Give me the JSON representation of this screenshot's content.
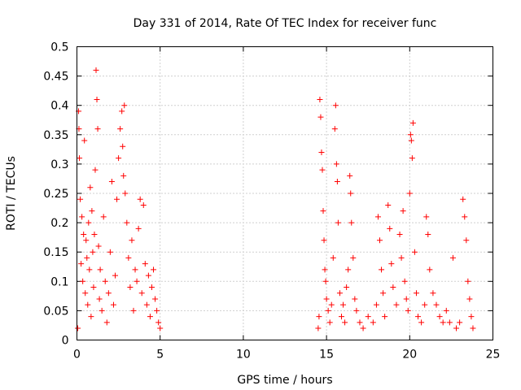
{
  "chart_data": {
    "type": "scatter",
    "title": "Day 331 of 2014, Rate Of TEC Index for receiver func",
    "xlabel": "GPS time / hours",
    "ylabel": "ROTI / TECUs",
    "xlim": [
      0,
      25
    ],
    "ylim": [
      0,
      0.5
    ],
    "x_ticks": [
      "0",
      "5",
      "10",
      "15",
      "20",
      "25"
    ],
    "y_ticks": [
      "0",
      "0.05",
      "0.1",
      "0.15",
      "0.2",
      "0.25",
      "0.3",
      "0.35",
      "0.4",
      "0.45",
      "0.5"
    ],
    "grid": true,
    "marker": "+",
    "marker_color": "#ff0000",
    "series": [
      {
        "values": [
          [
            0.05,
            0.02
          ],
          [
            0.1,
            0.39
          ],
          [
            0.12,
            0.36
          ],
          [
            0.15,
            0.31
          ],
          [
            0.2,
            0.24
          ],
          [
            0.25,
            0.13
          ],
          [
            0.3,
            0.21
          ],
          [
            0.35,
            0.1
          ],
          [
            0.4,
            0.18
          ],
          [
            0.45,
            0.34
          ],
          [
            0.5,
            0.08
          ],
          [
            0.55,
            0.17
          ],
          [
            0.6,
            0.14
          ],
          [
            0.65,
            0.06
          ],
          [
            0.7,
            0.2
          ],
          [
            0.75,
            0.12
          ],
          [
            0.8,
            0.26
          ],
          [
            0.85,
            0.04
          ],
          [
            0.9,
            0.22
          ],
          [
            0.95,
            0.15
          ],
          [
            1.0,
            0.09
          ],
          [
            1.05,
            0.18
          ],
          [
            1.1,
            0.29
          ],
          [
            1.15,
            0.46
          ],
          [
            1.2,
            0.41
          ],
          [
            1.25,
            0.36
          ],
          [
            1.3,
            0.16
          ],
          [
            1.35,
            0.07
          ],
          [
            1.4,
            0.12
          ],
          [
            1.5,
            0.05
          ],
          [
            1.6,
            0.21
          ],
          [
            1.7,
            0.1
          ],
          [
            1.8,
            0.03
          ],
          [
            1.9,
            0.08
          ],
          [
            2.0,
            0.15
          ],
          [
            2.1,
            0.27
          ],
          [
            2.2,
            0.06
          ],
          [
            2.3,
            0.11
          ],
          [
            2.4,
            0.24
          ],
          [
            2.5,
            0.31
          ],
          [
            2.6,
            0.36
          ],
          [
            2.7,
            0.39
          ],
          [
            2.75,
            0.33
          ],
          [
            2.8,
            0.28
          ],
          [
            2.85,
            0.4
          ],
          [
            2.9,
            0.25
          ],
          [
            3.0,
            0.2
          ],
          [
            3.1,
            0.14
          ],
          [
            3.2,
            0.09
          ],
          [
            3.3,
            0.17
          ],
          [
            3.4,
            0.05
          ],
          [
            3.5,
            0.12
          ],
          [
            3.6,
            0.1
          ],
          [
            3.7,
            0.19
          ],
          [
            3.8,
            0.24
          ],
          [
            3.9,
            0.08
          ],
          [
            4.0,
            0.23
          ],
          [
            4.1,
            0.13
          ],
          [
            4.2,
            0.06
          ],
          [
            4.3,
            0.11
          ],
          [
            4.4,
            0.04
          ],
          [
            4.5,
            0.09
          ],
          [
            4.6,
            0.12
          ],
          [
            4.7,
            0.07
          ],
          [
            4.8,
            0.05
          ],
          [
            4.9,
            0.03
          ],
          [
            5.0,
            0.02
          ],
          [
            14.5,
            0.02
          ],
          [
            14.55,
            0.04
          ],
          [
            14.6,
            0.41
          ],
          [
            14.65,
            0.38
          ],
          [
            14.7,
            0.32
          ],
          [
            14.75,
            0.29
          ],
          [
            14.8,
            0.22
          ],
          [
            14.85,
            0.17
          ],
          [
            14.9,
            0.12
          ],
          [
            14.95,
            0.1
          ],
          [
            15.0,
            0.07
          ],
          [
            15.1,
            0.05
          ],
          [
            15.2,
            0.03
          ],
          [
            15.3,
            0.06
          ],
          [
            15.4,
            0.14
          ],
          [
            15.5,
            0.36
          ],
          [
            15.55,
            0.4
          ],
          [
            15.6,
            0.3
          ],
          [
            15.65,
            0.27
          ],
          [
            15.7,
            0.2
          ],
          [
            15.8,
            0.08
          ],
          [
            15.9,
            0.04
          ],
          [
            16.0,
            0.06
          ],
          [
            16.1,
            0.03
          ],
          [
            16.2,
            0.09
          ],
          [
            16.3,
            0.12
          ],
          [
            16.4,
            0.28
          ],
          [
            16.45,
            0.25
          ],
          [
            16.5,
            0.2
          ],
          [
            16.6,
            0.14
          ],
          [
            16.7,
            0.07
          ],
          [
            16.8,
            0.05
          ],
          [
            17.0,
            0.03
          ],
          [
            17.2,
            0.02
          ],
          [
            17.5,
            0.04
          ],
          [
            17.8,
            0.03
          ],
          [
            18.0,
            0.06
          ],
          [
            18.1,
            0.21
          ],
          [
            18.2,
            0.17
          ],
          [
            18.3,
            0.12
          ],
          [
            18.4,
            0.08
          ],
          [
            18.5,
            0.04
          ],
          [
            18.7,
            0.23
          ],
          [
            18.8,
            0.19
          ],
          [
            18.9,
            0.13
          ],
          [
            19.0,
            0.09
          ],
          [
            19.2,
            0.06
          ],
          [
            19.4,
            0.18
          ],
          [
            19.5,
            0.14
          ],
          [
            19.6,
            0.22
          ],
          [
            19.7,
            0.1
          ],
          [
            19.8,
            0.07
          ],
          [
            19.9,
            0.05
          ],
          [
            20.0,
            0.25
          ],
          [
            20.05,
            0.35
          ],
          [
            20.1,
            0.34
          ],
          [
            20.15,
            0.31
          ],
          [
            20.2,
            0.37
          ],
          [
            20.3,
            0.15
          ],
          [
            20.4,
            0.08
          ],
          [
            20.5,
            0.04
          ],
          [
            20.7,
            0.03
          ],
          [
            20.9,
            0.06
          ],
          [
            21.0,
            0.21
          ],
          [
            21.1,
            0.18
          ],
          [
            21.2,
            0.12
          ],
          [
            21.4,
            0.08
          ],
          [
            21.6,
            0.06
          ],
          [
            21.8,
            0.04
          ],
          [
            22.0,
            0.03
          ],
          [
            22.2,
            0.05
          ],
          [
            22.4,
            0.03
          ],
          [
            22.6,
            0.14
          ],
          [
            22.8,
            0.02
          ],
          [
            23.0,
            0.03
          ],
          [
            23.2,
            0.24
          ],
          [
            23.3,
            0.21
          ],
          [
            23.4,
            0.17
          ],
          [
            23.5,
            0.1
          ],
          [
            23.6,
            0.07
          ],
          [
            23.7,
            0.04
          ],
          [
            23.8,
            0.02
          ]
        ]
      }
    ]
  }
}
